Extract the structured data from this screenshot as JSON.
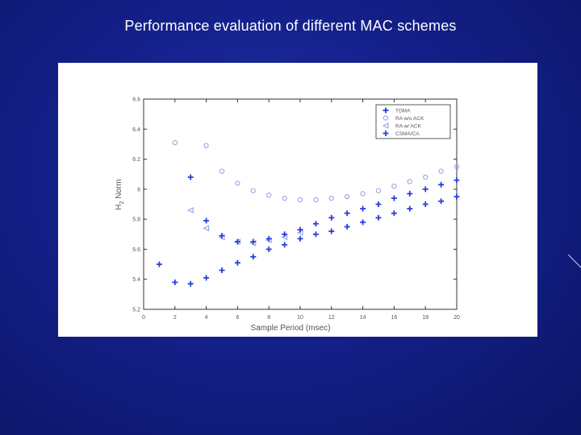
{
  "slide": {
    "title": "Performance evaluation of different MAC schemes"
  },
  "chart_data": {
    "type": "scatter",
    "title": "",
    "xlabel": "Sample Period (msec)",
    "ylabel": "H2 Norm",
    "ylabel_parts": {
      "main": "H",
      "sub": "2",
      "rest": " Norm"
    },
    "xlim": [
      0,
      20
    ],
    "ylim": [
      5.2,
      6.6
    ],
    "xticks": [
      "0",
      "2",
      "4",
      "6",
      "8",
      "10",
      "12",
      "14",
      "16",
      "18",
      "20"
    ],
    "yticks": [
      "5.2",
      "5.4",
      "5.6",
      "5.8",
      "6",
      "6.2",
      "6.4",
      "6.6"
    ],
    "legend_position": "top-right",
    "series": [
      {
        "name": "TDMA",
        "marker": "plus",
        "color": "#2b3fd8",
        "x": [
          1,
          2,
          3,
          4,
          5,
          6,
          7,
          8,
          9,
          10,
          11,
          12,
          13,
          14,
          15,
          16,
          17,
          18,
          19,
          20
        ],
        "y": [
          5.5,
          5.38,
          5.37,
          5.41,
          5.46,
          5.51,
          5.55,
          5.6,
          5.63,
          5.67,
          5.7,
          5.72,
          5.75,
          5.78,
          5.81,
          5.84,
          5.87,
          5.9,
          5.92,
          5.95
        ]
      },
      {
        "name": "RA w/o ACK",
        "marker": "circle",
        "color": "#9aa0e8",
        "x": [
          2,
          4,
          5,
          6,
          7,
          8,
          9,
          10,
          11,
          12,
          13,
          14,
          15,
          16,
          17,
          18,
          19,
          20
        ],
        "y": [
          6.31,
          6.29,
          6.12,
          6.04,
          5.99,
          5.96,
          5.94,
          5.93,
          5.93,
          5.94,
          5.95,
          5.97,
          5.99,
          6.02,
          6.05,
          6.08,
          6.12,
          6.15
        ]
      },
      {
        "name": "RA w/ ACK",
        "marker": "triangle",
        "color": "#9aa0e8",
        "x": [
          3,
          4,
          5,
          6,
          7,
          8,
          9,
          10
        ],
        "y": [
          5.86,
          5.74,
          5.68,
          5.65,
          5.64,
          5.66,
          5.68,
          5.71
        ]
      },
      {
        "name": "CSMA/CA",
        "marker": "plus",
        "color": "#2b3fd8",
        "x": [
          3,
          4,
          5,
          6,
          7,
          8,
          9,
          10,
          11,
          12,
          13,
          14,
          15,
          16,
          17,
          18,
          19,
          20
        ],
        "y": [
          6.08,
          5.79,
          5.69,
          5.65,
          5.65,
          5.67,
          5.7,
          5.73,
          5.77,
          5.81,
          5.84,
          5.87,
          5.9,
          5.94,
          5.97,
          6.0,
          6.03,
          6.06
        ]
      }
    ]
  }
}
